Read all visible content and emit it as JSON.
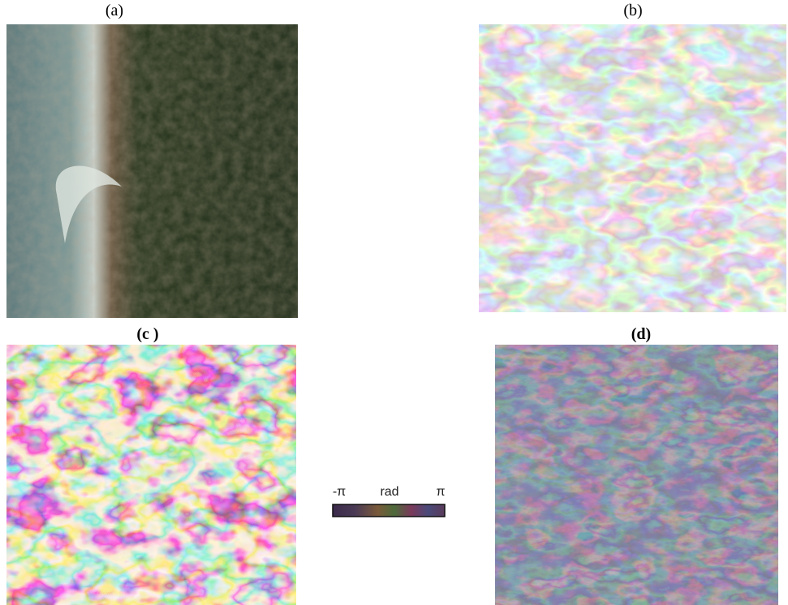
{
  "panels": [
    {
      "label": "(a)"
    },
    {
      "label": "(b)"
    },
    {
      "label": "(c )"
    },
    {
      "label": "(d)"
    }
  ],
  "colorbar": {
    "min": "-π",
    "label": "rad",
    "max": "π"
  }
}
